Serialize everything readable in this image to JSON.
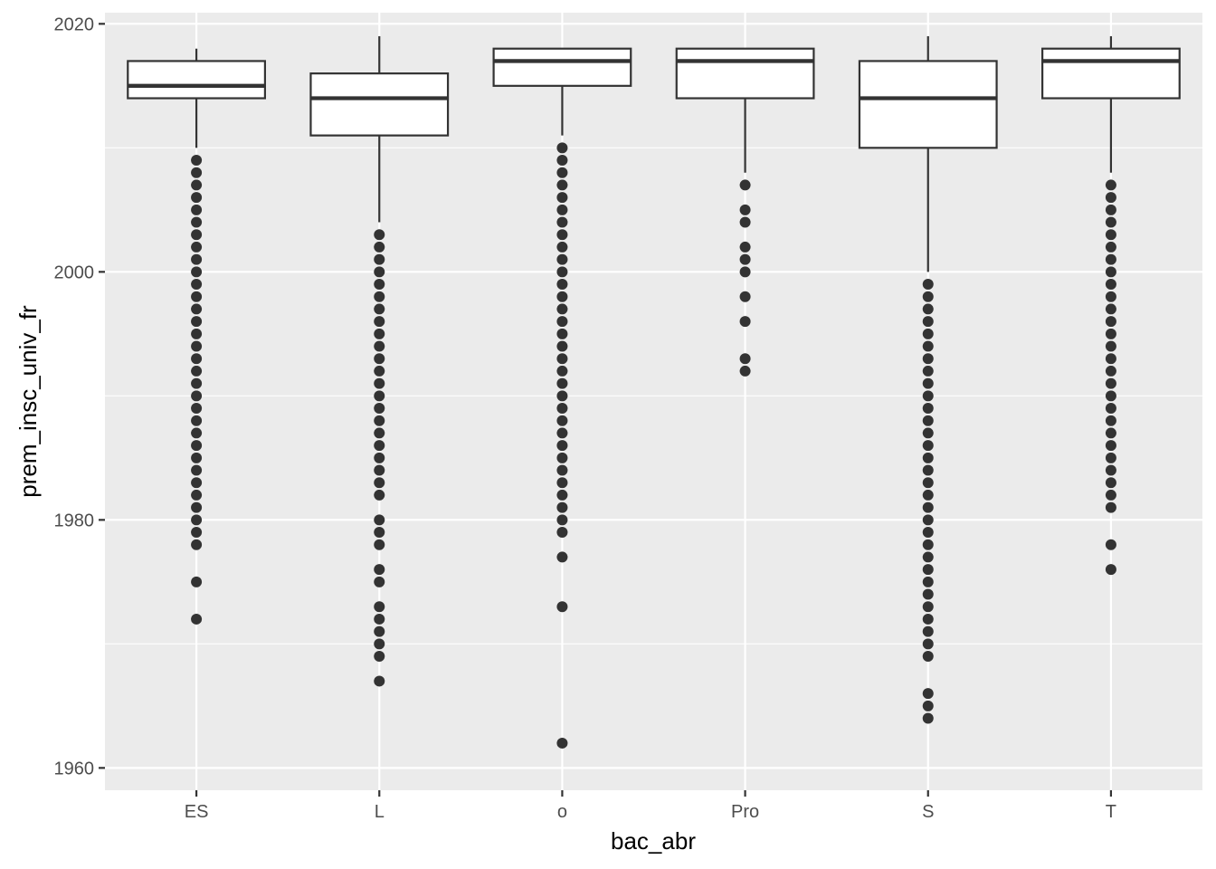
{
  "chart_data": {
    "type": "boxplot",
    "title": "",
    "xlabel": "bac_abr",
    "ylabel": "prem_insc_univ_fr",
    "ylim": [
      1958.2,
      2020.9
    ],
    "y_ticks": [
      1960,
      1980,
      2000,
      2020
    ],
    "y_tick_labels": [
      "1960",
      "1980",
      "2000",
      "2020"
    ],
    "grid": true,
    "panel_background": "#ebebeb",
    "grid_color": "#ffffff",
    "box_fill": "#ffffff",
    "stroke_color": "#333333",
    "categories": [
      "ES",
      "L",
      "o",
      "Pro",
      "S",
      "T"
    ],
    "boxes": [
      {
        "category": "ES",
        "whisker_low": 2010,
        "q1": 2014,
        "median": 2015,
        "q3": 2017,
        "whisker_high": 2018,
        "outliers": [
          2009,
          2008,
          2007,
          2006,
          2005,
          2004,
          2003,
          2002,
          2001,
          2000,
          1999,
          1998,
          1997,
          1996,
          1995,
          1994,
          1993,
          1992,
          1991,
          1990,
          1989,
          1988,
          1987,
          1986,
          1985,
          1984,
          1983,
          1982,
          1981,
          1980,
          1979,
          1978,
          1975,
          1972
        ]
      },
      {
        "category": "L",
        "whisker_low": 2004,
        "q1": 2011,
        "median": 2014,
        "q3": 2016,
        "whisker_high": 2019,
        "outliers": [
          2003,
          2002,
          2001,
          2000,
          1999,
          1998,
          1997,
          1996,
          1995,
          1994,
          1993,
          1992,
          1991,
          1990,
          1989,
          1988,
          1987,
          1986,
          1985,
          1984,
          1983,
          1982,
          1980,
          1979,
          1978,
          1976,
          1975,
          1973,
          1972,
          1971,
          1970,
          1969,
          1967
        ]
      },
      {
        "category": "o",
        "whisker_low": 2011,
        "q1": 2015,
        "median": 2017,
        "q3": 2018,
        "whisker_high": 2018,
        "outliers": [
          2010,
          2009,
          2008,
          2007,
          2006,
          2005,
          2004,
          2003,
          2002,
          2001,
          2000,
          1999,
          1998,
          1997,
          1996,
          1995,
          1994,
          1993,
          1992,
          1991,
          1990,
          1989,
          1988,
          1987,
          1986,
          1985,
          1984,
          1983,
          1982,
          1981,
          1980,
          1979,
          1977,
          1973,
          1962
        ]
      },
      {
        "category": "Pro",
        "whisker_low": 2008,
        "q1": 2014,
        "median": 2017,
        "q3": 2018,
        "whisker_high": 2018,
        "outliers": [
          2007,
          2005,
          2004,
          2002,
          2001,
          2000,
          1998,
          1996,
          1993,
          1992
        ]
      },
      {
        "category": "S",
        "whisker_low": 2000,
        "q1": 2010,
        "median": 2014,
        "q3": 2017,
        "whisker_high": 2019,
        "outliers": [
          1999,
          1998,
          1997,
          1996,
          1995,
          1994,
          1993,
          1992,
          1991,
          1990,
          1989,
          1988,
          1987,
          1986,
          1985,
          1984,
          1983,
          1982,
          1981,
          1980,
          1979,
          1978,
          1977,
          1976,
          1975,
          1974,
          1973,
          1972,
          1971,
          1970,
          1969,
          1966,
          1965,
          1964
        ]
      },
      {
        "category": "T",
        "whisker_low": 2008,
        "q1": 2014,
        "median": 2017,
        "q3": 2018,
        "whisker_high": 2019,
        "outliers": [
          2007,
          2006,
          2005,
          2004,
          2003,
          2002,
          2001,
          2000,
          1999,
          1998,
          1997,
          1996,
          1995,
          1994,
          1993,
          1992,
          1991,
          1990,
          1989,
          1988,
          1987,
          1986,
          1985,
          1984,
          1983,
          1982,
          1981,
          1978,
          1976
        ]
      }
    ]
  }
}
